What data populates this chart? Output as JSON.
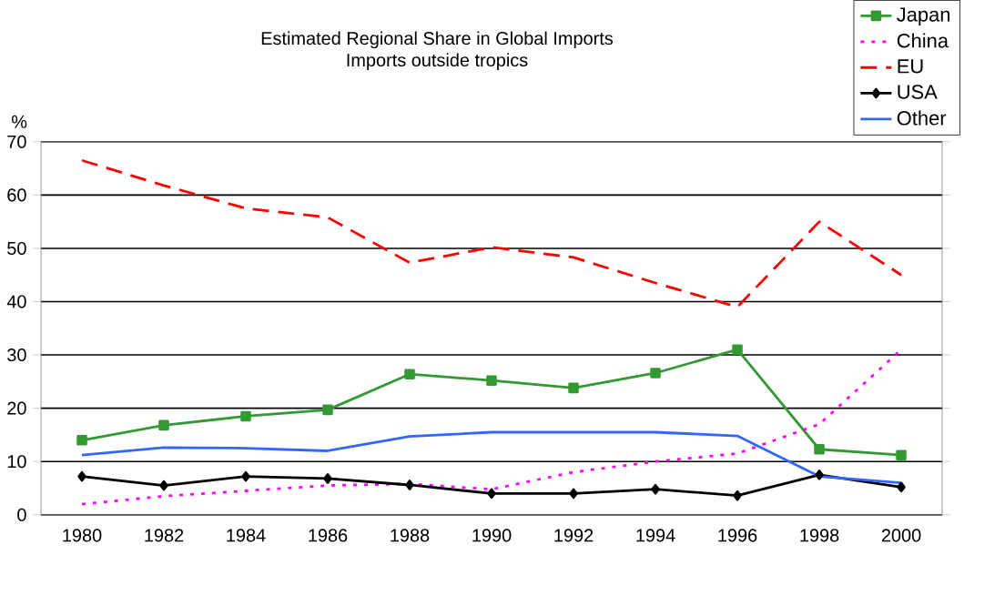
{
  "chart_data": {
    "type": "line",
    "title": "Estimated Regional Share in Global Imports",
    "subtitle": "Imports outside tropics",
    "ylabel": "%",
    "categories": [
      "1980",
      "1982",
      "1984",
      "1986",
      "1988",
      "1990",
      "1992",
      "1994",
      "1996",
      "1998",
      "2000"
    ],
    "series": [
      {
        "name": "Japan",
        "color": "#339933",
        "marker": "square",
        "line_style": "solid",
        "values": [
          14,
          16.8,
          18.5,
          19.7,
          26.4,
          25.2,
          23.8,
          26.6,
          31,
          12.3,
          11.2
        ]
      },
      {
        "name": "China",
        "color": "#ff00ff",
        "marker": "none",
        "line_style": "dotted",
        "values": [
          2,
          3.5,
          4.5,
          5.5,
          5.8,
          4.8,
          8,
          10,
          11.5,
          17,
          31
        ]
      },
      {
        "name": "EU",
        "color": "#ff0000",
        "marker": "none",
        "line_style": "dashed",
        "values": [
          66.5,
          61.8,
          57.5,
          55.8,
          47.3,
          50.2,
          48.3,
          43.5,
          39,
          55,
          45
        ]
      },
      {
        "name": "USA",
        "color": "#000000",
        "marker": "diamond",
        "line_style": "solid",
        "values": [
          7.2,
          5.5,
          7.2,
          6.8,
          5.6,
          4,
          4,
          4.8,
          3.6,
          7.5,
          5.2
        ]
      },
      {
        "name": "Other",
        "color": "#3366ff",
        "marker": "none",
        "line_style": "solid",
        "values": [
          11.2,
          12.6,
          12.5,
          12,
          14.7,
          15.5,
          15.5,
          15.5,
          14.8,
          7.2,
          6
        ]
      }
    ],
    "ylim": [
      0,
      70
    ],
    "yticks": [
      0,
      10,
      20,
      30,
      40,
      50,
      60,
      70
    ],
    "grid": "y",
    "legend": "top right"
  }
}
